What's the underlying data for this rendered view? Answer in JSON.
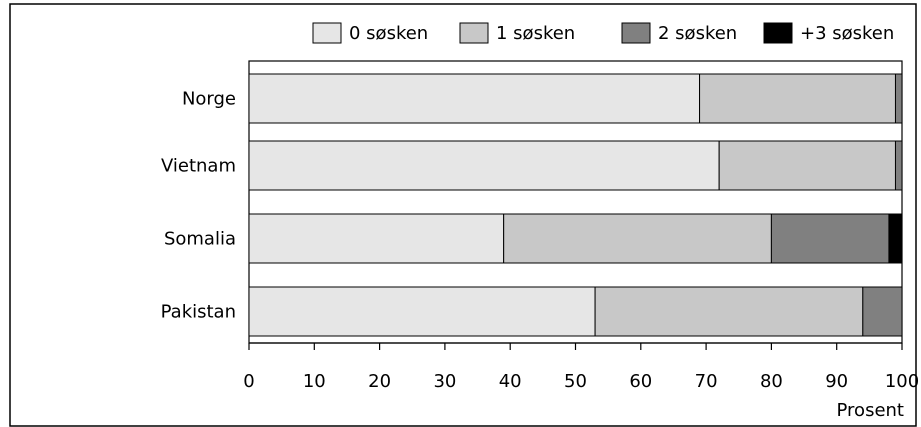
{
  "chart_data": {
    "type": "bar",
    "orientation": "horizontal",
    "stacked": true,
    "categories": [
      "Norge",
      "Vietnam",
      "Somalia",
      "Pakistan"
    ],
    "series": [
      {
        "name": "0 søsken",
        "values": [
          69,
          72,
          39,
          53
        ],
        "color": "#e6e6e6"
      },
      {
        "name": "1 søsken",
        "values": [
          30,
          27,
          41,
          41
        ],
        "color": "#c8c8c8"
      },
      {
        "name": "2 søsken",
        "values": [
          1,
          1,
          18,
          6
        ],
        "color": "#808080"
      },
      {
        "name": "+3 søsken",
        "values": [
          0,
          0,
          2,
          0
        ],
        "color": "#000000"
      }
    ],
    "xlabel": "Prosent",
    "xlim": [
      0,
      100
    ],
    "xticks": [
      "0",
      "10",
      "20",
      "30",
      "40",
      "50",
      "60",
      "70",
      "80",
      "90",
      "100"
    ],
    "grid": false,
    "legend_position": "top"
  }
}
